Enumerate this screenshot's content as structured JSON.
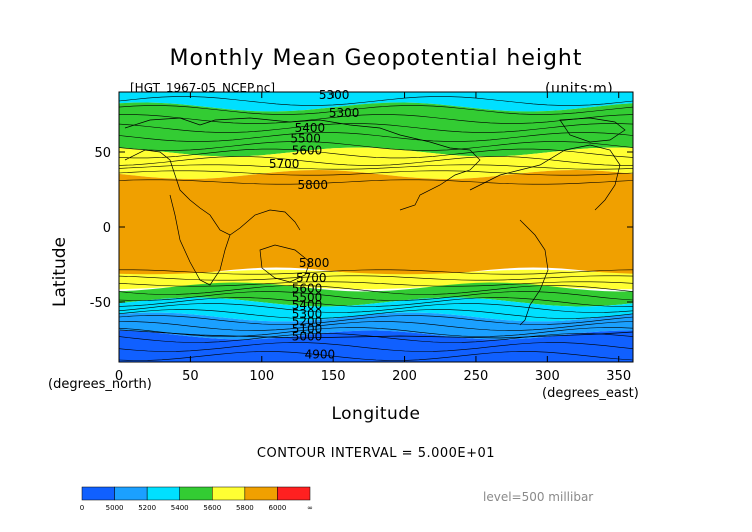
{
  "header": {
    "title": "Monthly Mean Geopotential height",
    "file_name": "[HGT_1967-05_NCEP.nc]",
    "units": "(units:m)"
  },
  "axes": {
    "ylabel": "Latitude",
    "xlabel": "Longitude",
    "xunit": "(degrees_north)",
    "xunit2": "(degrees_east)"
  },
  "footer": {
    "contour_interval": "CONTOUR INTERVAL = 5.000E+01",
    "level": "level=500 millibar"
  },
  "chart_data": {
    "type": "heatmap",
    "title": "Monthly Mean Geopotential height",
    "xlabel": "Longitude",
    "ylabel": "Latitude",
    "xlim": [
      0,
      360
    ],
    "ylim": [
      -90,
      90
    ],
    "x_ticks": [
      0,
      50,
      100,
      150,
      200,
      250,
      300,
      350
    ],
    "y_ticks": [
      50,
      0,
      -50
    ],
    "units": "m",
    "contour_interval": 50,
    "bands": [
      {
        "lat_top": 90,
        "lat_bot": 80,
        "color": "#00e0ff",
        "label": "5300-5400"
      },
      {
        "lat_top": 80,
        "lat_bot": 50,
        "color": "#33cc33",
        "label": "5400-5600"
      },
      {
        "lat_top": 50,
        "lat_bot": 35,
        "color": "#ffff33",
        "label": "5600-5800"
      },
      {
        "lat_top": 35,
        "lat_bot": -30,
        "color": "#f0a000",
        "label": "5800-6000"
      },
      {
        "lat_top": -30,
        "lat_bot": -40,
        "color": "#ffff33",
        "label": "5600-5800"
      },
      {
        "lat_top": -40,
        "lat_bot": -50,
        "color": "#33cc33",
        "label": "5400-5600"
      },
      {
        "lat_top": -50,
        "lat_bot": -60,
        "color": "#00e0ff",
        "label": "5200-5400"
      },
      {
        "lat_top": -60,
        "lat_bot": -72,
        "color": "#1ba0ff",
        "label": "5000-5200"
      },
      {
        "lat_top": -72,
        "lat_bot": -90,
        "color": "#1060ff",
        "label": "<5000"
      }
    ],
    "contour_labels": [
      {
        "text": "5300",
        "lon": 140,
        "lat": 88
      },
      {
        "text": "5300",
        "lon": 147,
        "lat": 76
      },
      {
        "text": "5400",
        "lon": 123,
        "lat": 66
      },
      {
        "text": "5500",
        "lon": 120,
        "lat": 59
      },
      {
        "text": "5600",
        "lon": 121,
        "lat": 51
      },
      {
        "text": "5700",
        "lon": 105,
        "lat": 42
      },
      {
        "text": "5800",
        "lon": 125,
        "lat": 28
      },
      {
        "text": "5800",
        "lon": 126,
        "lat": -24
      },
      {
        "text": "5700",
        "lon": 124,
        "lat": -34
      },
      {
        "text": "5600",
        "lon": 121,
        "lat": -41
      },
      {
        "text": "5500",
        "lon": 121,
        "lat": -47
      },
      {
        "text": "5400",
        "lon": 121,
        "lat": -52
      },
      {
        "text": "5300",
        "lon": 121,
        "lat": -58
      },
      {
        "text": "5200",
        "lon": 121,
        "lat": -63
      },
      {
        "text": "5100",
        "lon": 121,
        "lat": -68
      },
      {
        "text": "5000",
        "lon": 121,
        "lat": -73
      },
      {
        "text": "4900",
        "lon": 130,
        "lat": -85
      }
    ],
    "colorbar": {
      "labels": [
        "0",
        "5000",
        "5200",
        "5400",
        "5600",
        "5800",
        "6000",
        "∞"
      ],
      "colors": [
        "#1060ff",
        "#1ba0ff",
        "#00e0ff",
        "#33cc33",
        "#ffff33",
        "#f0a000",
        "#ff2020"
      ]
    }
  }
}
